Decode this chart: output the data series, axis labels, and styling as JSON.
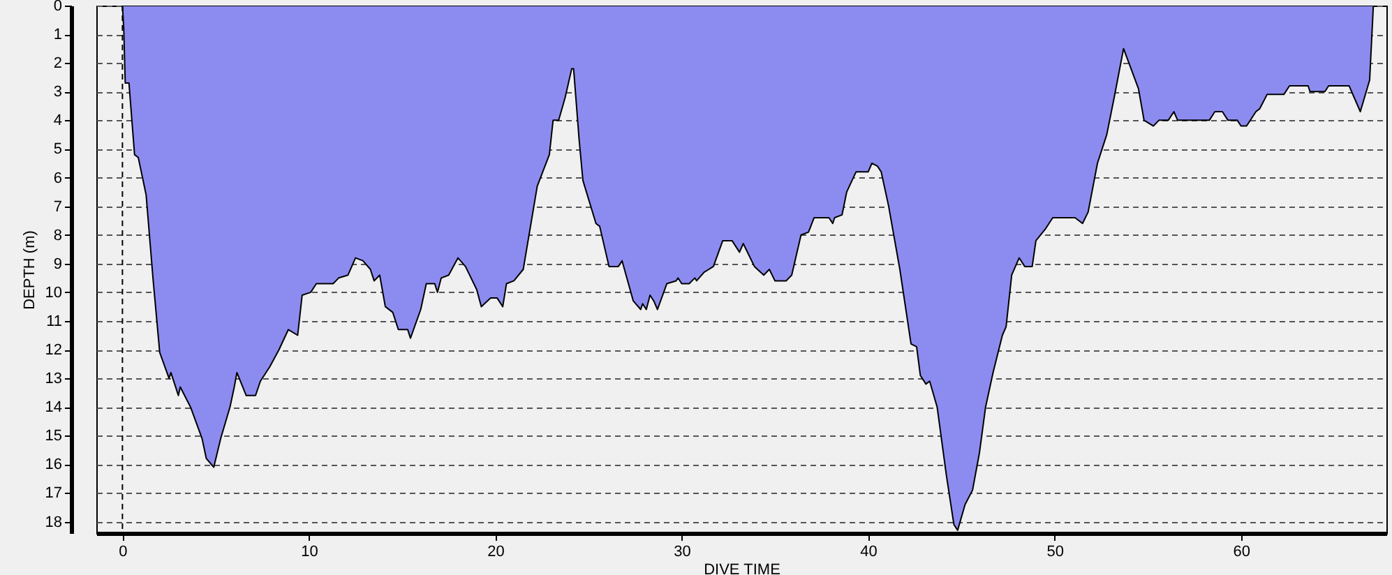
{
  "chart_data": {
    "type": "area",
    "xlabel": "DIVE TIME",
    "ylabel": "DEPTH (m)",
    "x": [
      0,
      0.07,
      0.15,
      0.35,
      0.65,
      0.85,
      1.27,
      1.65,
      2.0,
      2.5,
      2.6,
      3.0,
      3.1,
      3.65,
      4.27,
      4.5,
      4.9,
      5.27,
      5.77,
      6.0,
      6.14,
      6.64,
      7.14,
      7.4,
      7.9,
      8.4,
      8.9,
      9.4,
      9.64,
      10.1,
      10.4,
      11.3,
      11.6,
      12.1,
      12.5,
      12.9,
      13.3,
      13.5,
      13.8,
      14.1,
      14.5,
      14.8,
      15.3,
      15.45,
      16.0,
      16.3,
      16.75,
      16.9,
      17.1,
      17.5,
      18.0,
      18.4,
      19.0,
      19.25,
      19.75,
      20.1,
      20.4,
      20.6,
      21.0,
      21.5,
      22.25,
      22.9,
      23.1,
      23.4,
      23.75,
      24.1,
      24.2,
      24.5,
      24.7,
      25.4,
      25.6,
      26.1,
      26.6,
      26.8,
      27.1,
      27.4,
      27.8,
      27.9,
      28.1,
      28.3,
      28.5,
      28.7,
      29.2,
      29.7,
      29.8,
      30.0,
      30.4,
      30.7,
      30.8,
      31.2,
      31.7,
      32.2,
      32.7,
      33.1,
      33.3,
      33.9,
      34.4,
      34.7,
      35.0,
      35.6,
      35.9,
      36.4,
      36.8,
      37.1,
      37.9,
      38.1,
      38.2,
      38.6,
      38.85,
      39.35,
      40.0,
      40.2,
      40.5,
      40.7,
      41.1,
      41.7,
      42.3,
      42.6,
      42.8,
      43.1,
      43.3,
      43.7,
      44.2,
      44.6,
      44.8,
      45.2,
      45.6,
      45.97,
      46.3,
      46.7,
      47.2,
      47.4,
      47.7,
      48.1,
      48.4,
      48.8,
      49.0,
      49.5,
      49.9,
      51.1,
      51.5,
      51.8,
      52.3,
      52.8,
      53.2,
      53.7,
      54.5,
      54.8,
      55.3,
      55.6,
      56.1,
      56.4,
      56.6,
      58.3,
      58.6,
      59.0,
      59.3,
      59.8,
      60.0,
      60.3,
      60.8,
      61.0,
      61.4,
      62.3,
      62.6,
      63.6,
      63.7,
      64.5,
      64.7,
      65.8,
      66.4,
      66.9,
      67.1
    ],
    "series": [
      {
        "color": "#8c8cf0",
        "values": [
          0,
          0.8,
          2.7,
          2.7,
          5.2,
          5.3,
          6.6,
          9.6,
          12.1,
          13.0,
          12.8,
          13.6,
          13.3,
          14.0,
          15.1,
          15.8,
          16.1,
          15.1,
          14.0,
          13.3,
          12.8,
          13.6,
          13.6,
          13.1,
          12.6,
          12.0,
          11.3,
          11.5,
          10.1,
          10.0,
          9.7,
          9.7,
          9.5,
          9.4,
          8.8,
          8.9,
          9.2,
          9.6,
          9.4,
          10.5,
          10.7,
          11.3,
          11.3,
          11.6,
          10.6,
          9.7,
          9.7,
          10.0,
          9.5,
          9.4,
          8.8,
          9.1,
          9.9,
          10.5,
          10.2,
          10.2,
          10.5,
          9.7,
          9.6,
          9.2,
          6.3,
          5.2,
          4.0,
          4.0,
          3.2,
          2.2,
          2.2,
          4.7,
          6.1,
          7.6,
          7.7,
          9.1,
          9.1,
          8.9,
          9.6,
          10.3,
          10.6,
          10.4,
          10.6,
          10.1,
          10.3,
          10.6,
          9.7,
          9.6,
          9.5,
          9.7,
          9.7,
          9.5,
          9.6,
          9.3,
          9.1,
          8.2,
          8.2,
          8.6,
          8.3,
          9.1,
          9.4,
          9.2,
          9.6,
          9.6,
          9.4,
          8.0,
          7.9,
          7.4,
          7.4,
          7.6,
          7.4,
          7.3,
          6.5,
          5.8,
          5.8,
          5.5,
          5.6,
          5.8,
          7.0,
          9.2,
          11.8,
          11.9,
          12.9,
          13.2,
          13.1,
          14.0,
          16.4,
          18.1,
          18.3,
          17.4,
          16.9,
          15.6,
          14.0,
          12.8,
          11.5,
          11.2,
          9.4,
          8.8,
          9.1,
          9.1,
          8.2,
          7.8,
          7.4,
          7.4,
          7.6,
          7.2,
          5.5,
          4.5,
          3.2,
          1.5,
          2.9,
          4.0,
          4.2,
          4.0,
          4.0,
          3.7,
          4.0,
          4.0,
          3.7,
          3.7,
          4.0,
          4.0,
          4.2,
          4.2,
          3.7,
          3.6,
          3.1,
          3.1,
          2.8,
          2.8,
          3.0,
          3.0,
          2.8,
          2.8,
          3.7,
          2.6,
          0
        ]
      }
    ],
    "xlim": [
      -1.4,
      67.8
    ],
    "ylim": [
      18.4,
      0
    ],
    "xticks": [
      0,
      10,
      20,
      30,
      40,
      50,
      60
    ],
    "yticks": [
      0,
      1,
      2,
      3,
      4,
      5,
      6,
      7,
      8,
      9,
      10,
      11,
      12,
      13,
      14,
      15,
      16,
      17,
      18
    ],
    "grid": "y",
    "ref_lines": [
      {
        "axis": "x",
        "value": 0,
        "color": "#000000",
        "line_style": "dashed"
      }
    ]
  }
}
